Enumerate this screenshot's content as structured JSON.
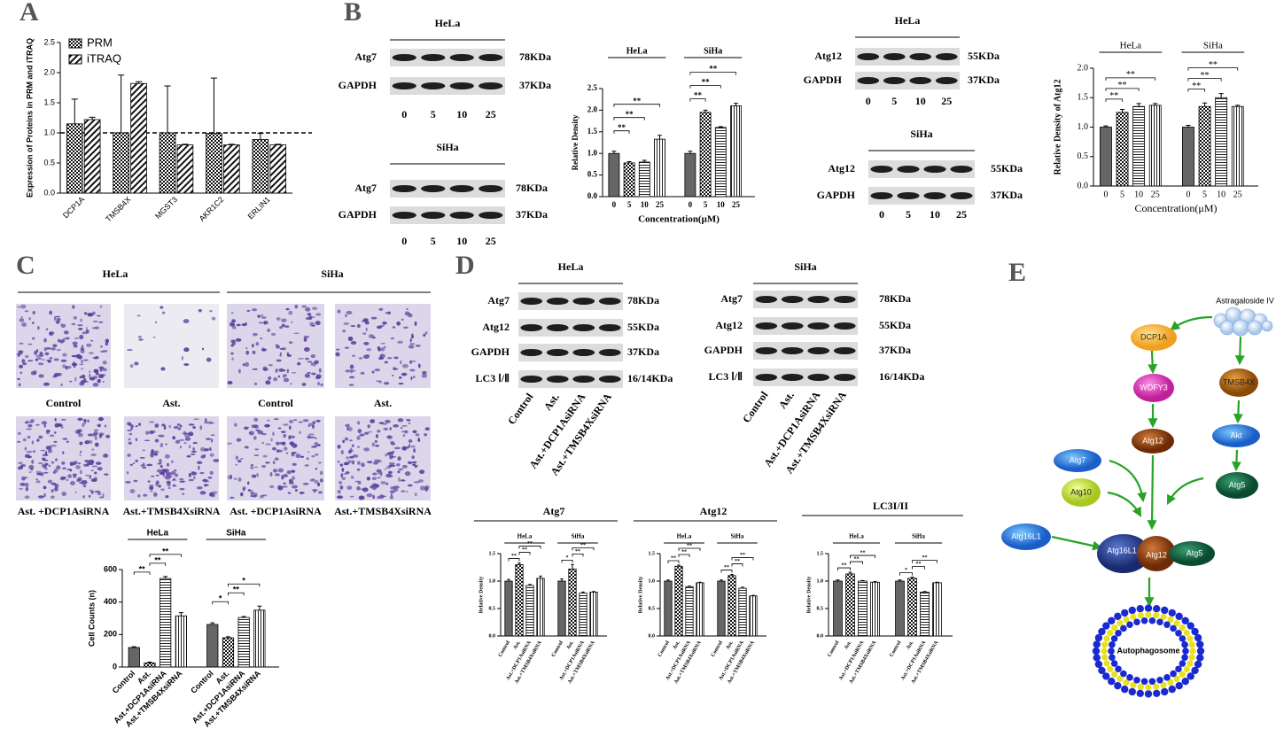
{
  "panel_labels": [
    "A",
    "B",
    "C",
    "D",
    "E"
  ],
  "chart_data": [
    {
      "type": "bar",
      "y_label": "Expression of Proteins in PRM and iTRAQ",
      "categories": [
        "DCP1A",
        "TMSB4X",
        "MGST3",
        "AKR1C2",
        "ERLIN1"
      ],
      "series": [
        {
          "name": "PRM",
          "values": [
            1.15,
            1.0,
            1.0,
            0.99,
            0.89
          ],
          "errors": [
            0.41,
            0.96,
            0.78,
            0.92,
            0.1
          ]
        },
        {
          "name": "iTRAQ",
          "values": [
            1.22,
            1.82,
            0.8,
            0.8,
            0.8
          ],
          "errors": [
            0.04,
            0.03,
            0.01,
            0.01,
            0.01
          ]
        }
      ],
      "ylim": [
        0,
        2.5
      ],
      "yticks": [
        {
          "value": 0,
          "label": "0.0"
        },
        0.5,
        {
          "value": 1,
          "label": "1.0"
        },
        1.5,
        {
          "value": 2,
          "label": "2.0"
        },
        2.5
      ],
      "reference_line": 1,
      "legend": "upper left"
    },
    {
      "type": "bar",
      "y_label": "Relative Density",
      "x_label": "Concentration(μM)",
      "categories": [
        "0",
        "5",
        "10",
        "25"
      ],
      "series": [
        {
          "name": "HeLa",
          "values": [
            1.0,
            0.78,
            0.8,
            1.33
          ],
          "errors": [
            0.05,
            0.03,
            0.04,
            0.09
          ],
          "significance": [
            "**",
            "**",
            "**"
          ]
        },
        {
          "name": "SiHa",
          "values": [
            1.0,
            1.95,
            1.6,
            2.1
          ],
          "errors": [
            0.05,
            0.05,
            0.02,
            0.06
          ],
          "significance": [
            "**",
            "**",
            "**"
          ]
        }
      ],
      "ylim": [
        0,
        2.5
      ],
      "yticks": [
        {
          "value": 0,
          "label": "0.0"
        },
        0.5,
        {
          "value": 1,
          "label": "1.0"
        },
        1.5,
        {
          "value": 2,
          "label": "2.0"
        },
        2.5
      ]
    },
    {
      "type": "bar",
      "y_label": "Relative Density of Atg12",
      "x_label": "Concentration(μM)",
      "categories": [
        "0",
        "5",
        "10",
        "25"
      ],
      "series": [
        {
          "name": "HeLa",
          "values": [
            1.0,
            1.25,
            1.35,
            1.37
          ],
          "errors": [
            0.02,
            0.05,
            0.05,
            0.03
          ],
          "significance": [
            "**",
            "**",
            "**"
          ]
        },
        {
          "name": "SiHa",
          "values": [
            1.0,
            1.35,
            1.5,
            1.35
          ],
          "errors": [
            0.03,
            0.06,
            0.07,
            0.02
          ],
          "significance": [
            "**",
            "**",
            "**"
          ]
        }
      ],
      "ylim": [
        0,
        2
      ],
      "yticks": [
        {
          "value": 0,
          "label": "0.0"
        },
        0.5,
        {
          "value": 1,
          "label": "1.0"
        },
        1.5,
        {
          "value": 2,
          "label": "2.0"
        }
      ]
    },
    {
      "type": "bar",
      "y_label": "Cell Counts (n)",
      "categories": [
        "Control",
        "Ast.",
        "Ast.+DCP1AsiRNA",
        "Ast.+TMSB4XsiRNA"
      ],
      "series": [
        {
          "name": "HeLa",
          "values": [
            120,
            25,
            545,
            315
          ],
          "errors": [
            5,
            5,
            12,
            20
          ],
          "significance": [
            "**",
            "**",
            "**"
          ]
        },
        {
          "name": "SiHa",
          "values": [
            262,
            180,
            305,
            350
          ],
          "errors": [
            10,
            6,
            6,
            25
          ],
          "significance": [
            "*",
            "**",
            "*"
          ]
        }
      ],
      "ylim": [
        0,
        600
      ],
      "yticks": [
        0,
        200,
        400,
        600
      ]
    },
    {
      "type": "bar",
      "title": "Atg7",
      "y_label": "Relative Density",
      "categories": [
        "Control",
        "Ast.",
        "Ast.+DCP1AsiRNA",
        "Ast.+TMSB4XsiRNA"
      ],
      "series": [
        {
          "name": "HeLa",
          "values": [
            1.0,
            1.3,
            0.92,
            1.05
          ],
          "errors": [
            0.03,
            0.03,
            0.02,
            0.04
          ],
          "significance": [
            "**",
            "**",
            "**"
          ]
        },
        {
          "name": "SiHa",
          "values": [
            1.0,
            1.22,
            0.78,
            0.8
          ],
          "errors": [
            0.04,
            0.08,
            0.02,
            0.01
          ],
          "significance": [
            "*",
            "**",
            "**"
          ]
        }
      ],
      "ylim": [
        0,
        1.5
      ],
      "yticks": [
        {
          "value": 0,
          "label": "0.0"
        },
        0.5,
        {
          "value": 1,
          "label": "1.0"
        },
        1.5
      ]
    },
    {
      "type": "bar",
      "title": "Atg12",
      "y_label": "Relative Density",
      "categories": [
        "Control",
        "Ast.",
        "Ast.+DCP1AsiRNA",
        "Ast.+TMSB4XsiRNA"
      ],
      "series": [
        {
          "name": "HeLa",
          "values": [
            1.0,
            1.27,
            0.9,
            0.97
          ],
          "errors": [
            0.02,
            0.02,
            0.01,
            0.01
          ],
          "significance": [
            "**",
            "**",
            "**"
          ]
        },
        {
          "name": "SiHa",
          "values": [
            1.0,
            1.1,
            0.87,
            0.73
          ],
          "errors": [
            0.02,
            0.02,
            0.02,
            0.01
          ],
          "significance": [
            "**",
            "**",
            "**"
          ]
        }
      ],
      "ylim": [
        0,
        1.5
      ],
      "yticks": [
        {
          "value": 0,
          "label": "0.0"
        },
        0.5,
        {
          "value": 1,
          "label": "1.0"
        },
        1.5
      ]
    },
    {
      "type": "bar",
      "title": "LC3I/II",
      "y_label": "Relative Density",
      "categories": [
        "Control",
        "Ast.",
        "Ast.+DCP1AsiRNA",
        "Ast.+TMSB4XsiRNA"
      ],
      "series": [
        {
          "name": "HeLa",
          "values": [
            1.0,
            1.13,
            1.0,
            0.98
          ],
          "errors": [
            0.02,
            0.03,
            0.01,
            0.01
          ],
          "significance": [
            "**",
            "**",
            "**"
          ]
        },
        {
          "name": "SiHa",
          "values": [
            1.0,
            1.05,
            0.8,
            0.97
          ],
          "errors": [
            0.02,
            0.02,
            0.01,
            0.01
          ],
          "significance": [
            "*",
            "**",
            "**"
          ]
        }
      ],
      "ylim": [
        0,
        1.5
      ],
      "yticks": [
        {
          "value": 0,
          "label": "0.0"
        },
        0.5,
        {
          "value": 1,
          "label": "1.0"
        },
        1.5
      ]
    }
  ],
  "blots": [
    {
      "title": "HeLa",
      "rows": [
        {
          "protein": "Atg7",
          "size": "78KDa"
        },
        {
          "protein": "GAPDH",
          "size": "37KDa"
        }
      ],
      "lanes": [
        "0",
        "5",
        "10",
        "25"
      ]
    },
    {
      "title": "SiHa",
      "rows": [
        {
          "protein": "Atg7",
          "size": "78KDa"
        },
        {
          "protein": "GAPDH",
          "size": "37KDa"
        }
      ],
      "lanes": [
        "0",
        "5",
        "10",
        "25"
      ]
    },
    {
      "title": "HeLa",
      "rows": [
        {
          "protein": "Atg12",
          "size": "55KDa"
        },
        {
          "protein": "GAPDH",
          "size": "37KDa"
        }
      ],
      "lanes": [
        "0",
        "5",
        "10",
        "25"
      ]
    },
    {
      "title": "SiHa",
      "rows": [
        {
          "protein": "Atg12",
          "size": "55KDa"
        },
        {
          "protein": "GAPDH",
          "size": "37KDa"
        }
      ],
      "lanes": [
        "0",
        "5",
        "10",
        "25"
      ]
    },
    {
      "title": "HeLa",
      "rows": [
        {
          "protein": "Atg7",
          "size": "78KDa"
        },
        {
          "protein": "Atg12",
          "size": "55KDa"
        },
        {
          "protein": "GAPDH",
          "size": "37KDa"
        },
        {
          "protein": "LC3 Ⅰ/Ⅱ",
          "size": "16/14KDa"
        }
      ],
      "lanes": [
        "Control",
        "Ast.",
        "Ast.+DCP1AsiRNA",
        "Ast.+TMSB4XsiRNA"
      ]
    },
    {
      "title": "SiHa",
      "rows": [
        {
          "protein": "Atg7",
          "size": "78KDa"
        },
        {
          "protein": "Atg12",
          "size": "55KDa"
        },
        {
          "protein": "GAPDH",
          "size": "37KDa"
        },
        {
          "protein": "LC3 Ⅰ/Ⅱ",
          "size": "16/14KDa"
        }
      ],
      "lanes": [
        "Control",
        "Ast.",
        "Ast.+DCP1AsiRNA",
        "Ast.+TMSB4XsiRNA"
      ]
    }
  ],
  "cell_assay": {
    "groups": [
      "HeLa",
      "SiHa"
    ],
    "labels": [
      "Control",
      "Ast.",
      "Control",
      "Ast.",
      "Ast. +DCP1AsiRNA",
      "Ast.+TMSB4XsiRNA",
      "Ast. +DCP1AsiRNA",
      "Ast.+TMSB4XsiRNA"
    ]
  },
  "diagram": {
    "nodes": [
      {
        "label": "Astragaloside IV"
      },
      {
        "label": "DCP1A"
      },
      {
        "label": "WDFY3"
      },
      {
        "label": "Atg12"
      },
      {
        "label": "TMSB4X"
      },
      {
        "label": "Akt"
      },
      {
        "label": "Atg7"
      },
      {
        "label": "Atg10"
      },
      {
        "label": "Atg5"
      },
      {
        "label": "Atg16L1"
      },
      {
        "label": "Atg16L1"
      },
      {
        "label": "Atg12"
      },
      {
        "label": "Atg5"
      },
      {
        "label": "Autophagosome"
      }
    ]
  }
}
